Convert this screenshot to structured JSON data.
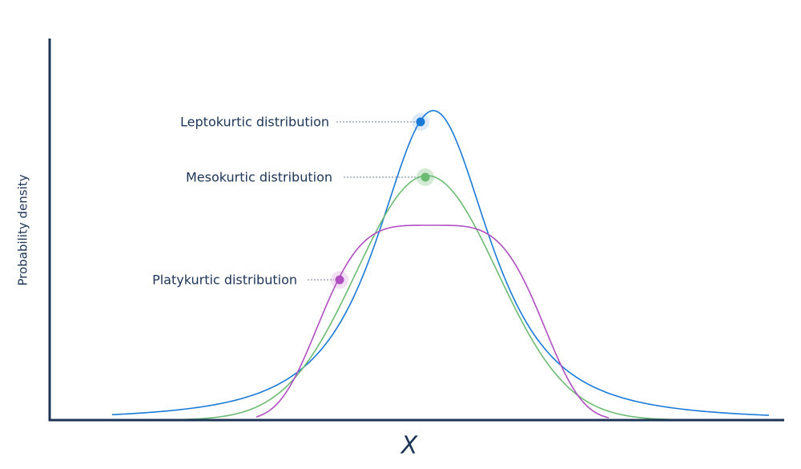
{
  "y_axis_label": "Probability density",
  "x_axis_label": "X",
  "annotations": [
    "Leptokurtic distribution",
    "Mesokurtic distribution",
    "Platykurtic distribution"
  ]
}
